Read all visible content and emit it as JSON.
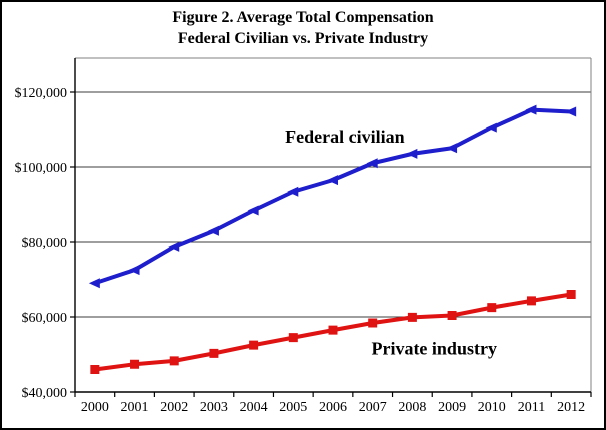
{
  "figure": {
    "title_line1": "Figure 2. Average Total Compensation",
    "title_line2": "Federal Civilian vs. Private Industry"
  },
  "chart_data": {
    "type": "line",
    "title": "Figure 2. Average Total Compensation",
    "subtitle": "Federal Civilian vs. Private Industry",
    "categories": [
      "2000",
      "2001",
      "2002",
      "2003",
      "2004",
      "2005",
      "2006",
      "2007",
      "2008",
      "2009",
      "2010",
      "2011",
      "2012"
    ],
    "series": [
      {
        "name": "Federal civilian",
        "color": "#1E1ECC",
        "marker": "triangle-left",
        "values": [
          69000,
          72500,
          78700,
          83000,
          88400,
          93400,
          96500,
          101000,
          103500,
          105000,
          110500,
          115300,
          114800
        ]
      },
      {
        "name": "Private industry",
        "color": "#E01313",
        "marker": "square",
        "values": [
          46000,
          47400,
          48300,
          50300,
          52500,
          54500,
          56500,
          58400,
          59900,
          60400,
          62500,
          64300,
          66000
        ]
      }
    ],
    "annotations": [
      {
        "label": "Federal civilian",
        "year_index": 6.3,
        "value": 108000
      },
      {
        "label": "Private industry",
        "year_index": 8.55,
        "value": 51600
      }
    ],
    "xlabel": "",
    "ylabel": "",
    "ylim": [
      40000,
      120000
    ],
    "ytick_step": 20000,
    "ytick_labels": [
      "$40,000",
      "$60,000",
      "$80,000",
      "$100,000",
      "$120,000"
    ],
    "grid": true,
    "legend": "inline-labels"
  },
  "colors": {
    "gridline": "#3C3C3C",
    "axis": "#000000",
    "plot_border": "#808080",
    "annotation_text": "#000000",
    "background": "#FFFFFF",
    "outer_border": "#000000"
  }
}
